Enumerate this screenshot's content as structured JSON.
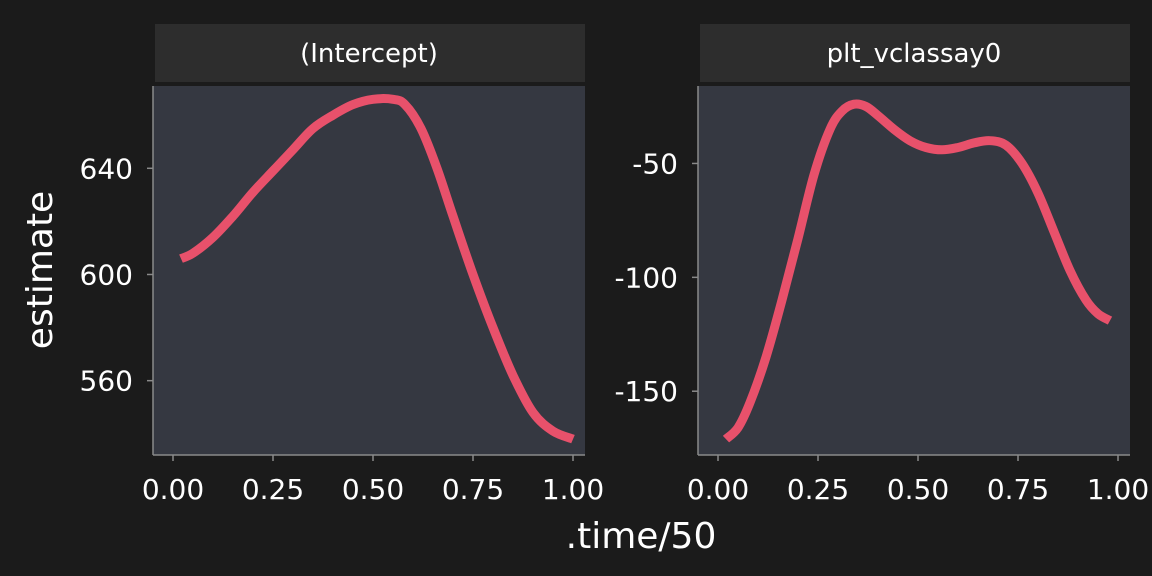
{
  "colors": {
    "background": "#1b1b1b",
    "panel": "#353841",
    "strip": "#2d2d2d",
    "line": "#e8516b",
    "text": "#ffffff"
  },
  "chart_data": {
    "type": "line",
    "xlabel": ".time/50",
    "ylabel": "estimate",
    "grid": false,
    "legend": "none",
    "panels": [
      {
        "name": "(Intercept)",
        "xlim": [
          -0.05,
          1.03
        ],
        "ylim": [
          532,
          671
        ],
        "x_ticks": [
          0.0,
          0.25,
          0.5,
          0.75,
          1.0
        ],
        "x_tick_labels": [
          "0.00",
          "0.25",
          "0.50",
          "0.75",
          "1.00"
        ],
        "y_ticks": [
          560,
          600,
          640
        ],
        "y_tick_labels": [
          "560",
          "600",
          "640"
        ],
        "series": [
          {
            "x": [
              0.02,
              0.05,
              0.1,
              0.15,
              0.2,
              0.25,
              0.3,
              0.35,
              0.4,
              0.45,
              0.5,
              0.55,
              0.58,
              0.62,
              0.66,
              0.7,
              0.75,
              0.8,
              0.85,
              0.9,
              0.95,
              1.0
            ],
            "y": [
              606,
              608,
              614,
              622,
              631,
              639,
              647,
              655,
              660,
              664,
              666,
              666,
              664,
              655,
              640,
              622,
              600,
              580,
              562,
              548,
              541,
              538
            ]
          }
        ]
      },
      {
        "name": "plt_vclassay0",
        "xlim": [
          -0.05,
          1.03
        ],
        "ylim": [
          -178,
          -16
        ],
        "x_ticks": [
          0.0,
          0.25,
          0.5,
          0.75,
          1.0
        ],
        "x_tick_labels": [
          "0.00",
          "0.25",
          "0.50",
          "0.75",
          "1.00"
        ],
        "y_ticks": [
          -150,
          -100,
          -50
        ],
        "y_tick_labels": [
          "-150",
          "-100",
          "-50"
        ],
        "series": [
          {
            "x": [
              0.02,
              0.05,
              0.08,
              0.12,
              0.16,
              0.2,
              0.24,
              0.28,
              0.31,
              0.34,
              0.37,
              0.4,
              0.44,
              0.48,
              0.52,
              0.56,
              0.6,
              0.64,
              0.68,
              0.72,
              0.76,
              0.8,
              0.84,
              0.88,
              0.92,
              0.95,
              0.98
            ],
            "y": [
              -171,
              -166,
              -155,
              -135,
              -110,
              -83,
              -55,
              -35,
              -27,
              -24,
              -25,
              -29,
              -35,
              -40,
              -43,
              -44,
              -43,
              -41,
              -40,
              -42,
              -50,
              -63,
              -80,
              -97,
              -110,
              -116,
              -119
            ]
          }
        ]
      }
    ]
  }
}
